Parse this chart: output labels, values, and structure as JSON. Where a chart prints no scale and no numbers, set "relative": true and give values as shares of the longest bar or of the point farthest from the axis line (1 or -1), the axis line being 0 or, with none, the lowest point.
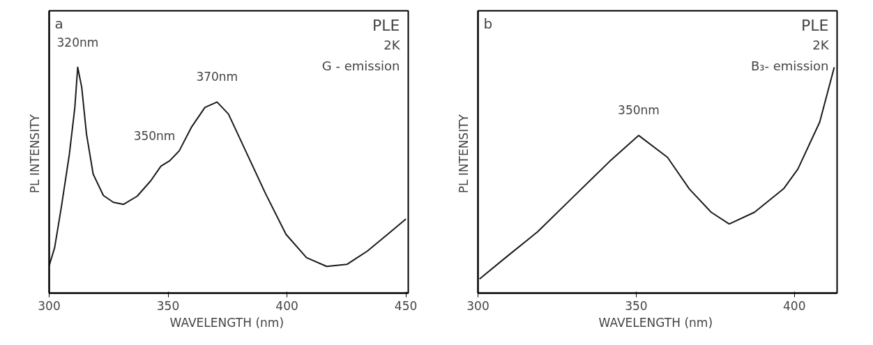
{
  "chart_data": [
    {
      "type": "line",
      "relative": true,
      "xlabel": "WAVELENGTH  (nm)",
      "ylabel": "PL  INTENSITY",
      "xlim": [
        300,
        451
      ],
      "xticks": [
        300,
        350,
        400,
        450
      ],
      "tick_labels": "x",
      "grid": false,
      "series": [
        {
          "color": "#1a1a1a",
          "x": [
            300.0,
            302.3,
            305.1,
            308.5,
            310.8,
            312.0,
            313.7,
            315.7,
            318.5,
            322.8,
            327.0,
            331.3,
            337.0,
            342.7,
            347.0,
            350.7,
            354.7,
            359.8,
            365.5,
            370.6,
            375.4,
            382.6,
            391.1,
            399.6,
            408.2,
            416.7,
            425.2,
            433.8,
            442.3,
            450.0
          ],
          "values": [
            0.121,
            0.201,
            0.379,
            0.615,
            0.822,
            1.0,
            0.911,
            0.704,
            0.527,
            0.432,
            0.402,
            0.393,
            0.429,
            0.497,
            0.562,
            0.586,
            0.63,
            0.734,
            0.822,
            0.846,
            0.793,
            0.63,
            0.438,
            0.26,
            0.157,
            0.118,
            0.127,
            0.186,
            0.26,
            0.328
          ]
        }
      ],
      "annotations": [
        "a",
        "PLE",
        "2K",
        "G - emission",
        {
          "text": "320nm",
          "x": 312.0,
          "y": 1.0
        },
        {
          "text": "370nm",
          "x": 370.6,
          "y": 0.846
        },
        {
          "text": "350nm",
          "x": 350.7,
          "y": 0.586
        }
      ]
    },
    {
      "type": "line",
      "relative": true,
      "xlabel": "WAVELENGTH  (nm)",
      "ylabel": "PL  INTENSITY",
      "xlim": [
        300,
        413.5
      ],
      "xticks": [
        300,
        350,
        400
      ],
      "tick_labels": "x",
      "grid": false,
      "series": [
        {
          "color": "#1a1a1a",
          "x": [
            300.5,
            309.6,
            318.8,
            330.2,
            341.6,
            350.8,
            359.9,
            366.8,
            373.7,
            379.4,
            387.4,
            396.6,
            401.1,
            408.0,
            412.6
          ],
          "values": [
            0.0625,
            0.167,
            0.271,
            0.427,
            0.583,
            0.698,
            0.601,
            0.461,
            0.358,
            0.306,
            0.358,
            0.462,
            0.549,
            0.757,
            1.0
          ]
        }
      ],
      "annotations": [
        "b",
        "PLE",
        "2K",
        "B₃- emission",
        {
          "text": "350nm",
          "x": 350.8,
          "y": 0.698
        }
      ]
    }
  ]
}
